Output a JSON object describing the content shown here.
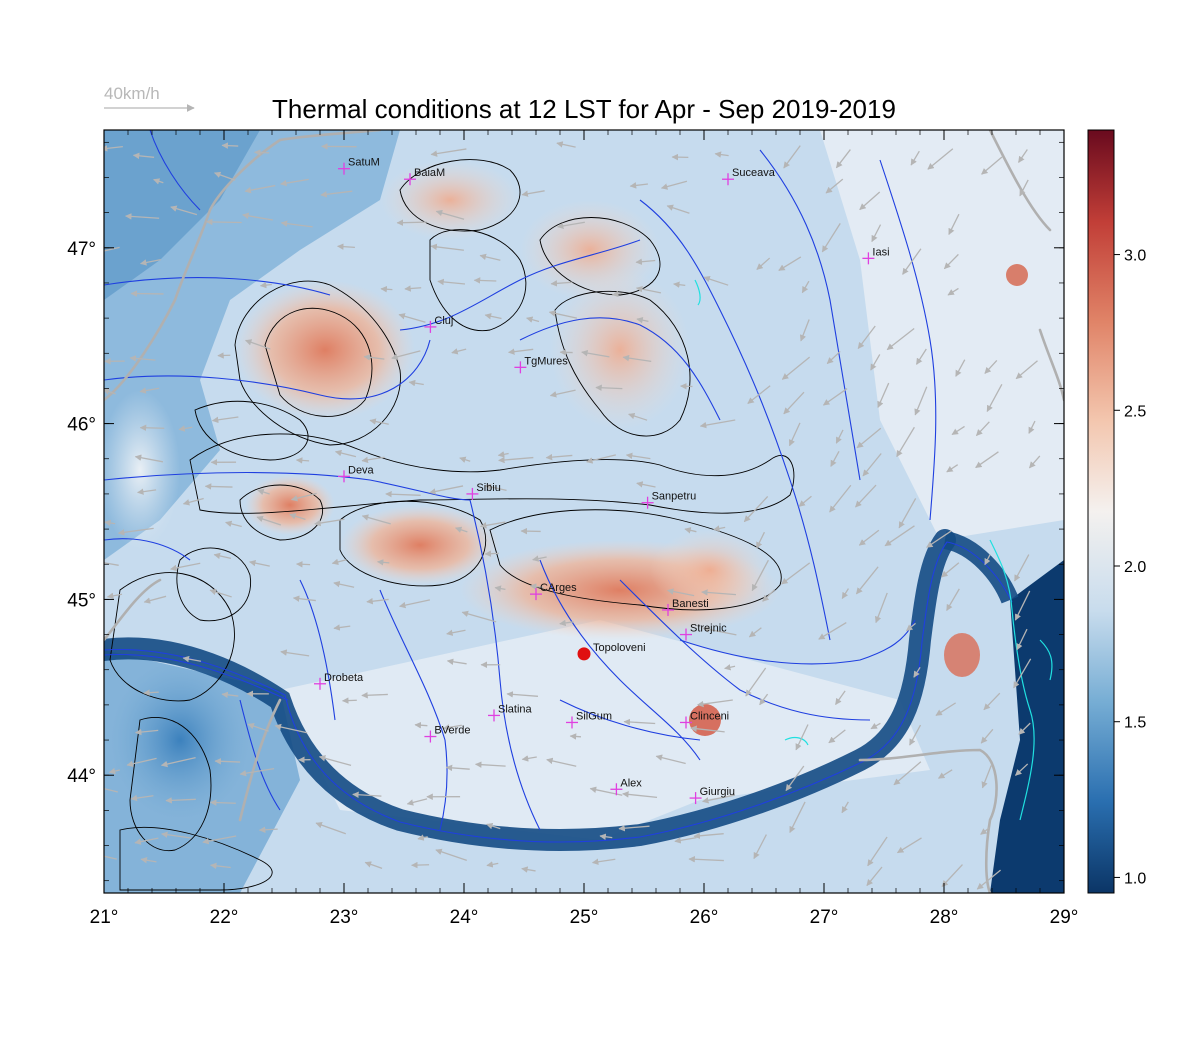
{
  "title": "Thermal conditions at 12 LST for Apr - Sep  2019-2019",
  "wind_reference": {
    "label": "40km/h",
    "color": "#bdbdbd"
  },
  "map": {
    "lon_range": [
      21,
      29
    ],
    "lat_range": [
      43.33,
      47.67
    ],
    "lon_ticks": [
      21,
      22,
      23,
      24,
      25,
      26,
      27,
      28,
      29
    ],
    "lat_ticks": [
      44,
      45,
      46,
      47
    ],
    "lon_tick_labels": [
      "21°",
      "22°",
      "23°",
      "24°",
      "25°",
      "26°",
      "27°",
      "28°",
      "29°"
    ],
    "lat_tick_labels": [
      "44°",
      "45°",
      "46°",
      "47°"
    ],
    "colors": {
      "river": "#1f3fe0",
      "border": "#b0b0b0",
      "contour": "#000000",
      "coast": "#20e0e0",
      "station": "#e040e0",
      "highlight": "#e01010"
    }
  },
  "colorbar": {
    "range": [
      0.95,
      3.4
    ],
    "ticks": [
      1.0,
      1.5,
      2.0,
      2.5,
      3.0
    ],
    "tick_labels": [
      "1.0",
      "1.5",
      "2.0",
      "2.5",
      "3.0"
    ],
    "palette": [
      "#0b3566",
      "#2a6fb0",
      "#76add4",
      "#c8dced",
      "#f4f1ef",
      "#f3c6ae",
      "#e08367",
      "#c13e37",
      "#690a1e"
    ]
  },
  "stations": [
    {
      "name": "SatuM",
      "lon": 23.0,
      "lat": 47.45
    },
    {
      "name": "BaiaM",
      "lon": 23.55,
      "lat": 47.39
    },
    {
      "name": "Suceava",
      "lon": 26.2,
      "lat": 47.39
    },
    {
      "name": "Iasi",
      "lon": 27.37,
      "lat": 46.94
    },
    {
      "name": "Cluj",
      "lon": 23.72,
      "lat": 46.55
    },
    {
      "name": "TgMures",
      "lon": 24.47,
      "lat": 46.32
    },
    {
      "name": "Deva",
      "lon": 23.0,
      "lat": 45.7
    },
    {
      "name": "Sibiu",
      "lon": 24.07,
      "lat": 45.6
    },
    {
      "name": "Sanpetru",
      "lon": 25.53,
      "lat": 45.55
    },
    {
      "name": "CArges",
      "lon": 24.6,
      "lat": 45.03
    },
    {
      "name": "Banesti",
      "lon": 25.7,
      "lat": 44.94
    },
    {
      "name": "Strejnic",
      "lon": 25.85,
      "lat": 44.8
    },
    {
      "name": "Drobeta",
      "lon": 22.8,
      "lat": 44.52
    },
    {
      "name": "Slatina",
      "lon": 24.25,
      "lat": 44.34
    },
    {
      "name": "SilGum",
      "lon": 24.9,
      "lat": 44.3
    },
    {
      "name": "Clinceni",
      "lon": 25.85,
      "lat": 44.3
    },
    {
      "name": "BVerde",
      "lon": 23.72,
      "lat": 44.22
    },
    {
      "name": "Alex",
      "lon": 25.27,
      "lat": 43.92
    },
    {
      "name": "Giurgiu",
      "lon": 25.93,
      "lat": 43.87
    }
  ],
  "highlight_station": {
    "name": "Topoloveni",
    "lon": 25.0,
    "lat": 44.69
  }
}
